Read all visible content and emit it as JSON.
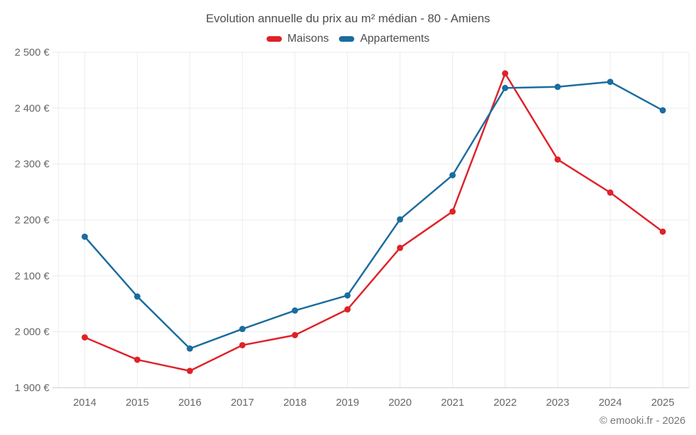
{
  "chart_data": {
    "type": "line",
    "title": "Evolution annuelle du prix au m² médian - 80 - Amiens",
    "categories": [
      "2014",
      "2015",
      "2016",
      "2017",
      "2018",
      "2019",
      "2020",
      "2021",
      "2022",
      "2023",
      "2024",
      "2025"
    ],
    "series": [
      {
        "name": "Maisons",
        "color": "#e02128",
        "values": [
          1990,
          1950,
          1930,
          1976,
          1994,
          2040,
          2150,
          2215,
          2462,
          2308,
          2249,
          2179
        ]
      },
      {
        "name": "Appartements",
        "color": "#1a6c9f",
        "values": [
          2170,
          2063,
          1970,
          2005,
          2038,
          2065,
          2201,
          2280,
          2436,
          2438,
          2447,
          2396
        ]
      }
    ],
    "xlabel": "",
    "ylabel": "",
    "ylim": [
      1900,
      2500
    ],
    "ytick_step": 100,
    "y_unit": "€",
    "ytick_labels": [
      "1 900 €",
      "2 000 €",
      "2 100 €",
      "2 200 €",
      "2 300 €",
      "2 400 €",
      "2 500 €"
    ],
    "grid": true,
    "legend_position": "top",
    "marker": "circle"
  },
  "footer": {
    "copyright": "© emooki.fr - 2026"
  },
  "colors": {
    "background": "#ffffff",
    "grid": "#ebebeb",
    "axis": "#c9c9c9",
    "tick_label": "#666666",
    "title_text": "#4d4d4d",
    "copyright_text": "#777777"
  }
}
